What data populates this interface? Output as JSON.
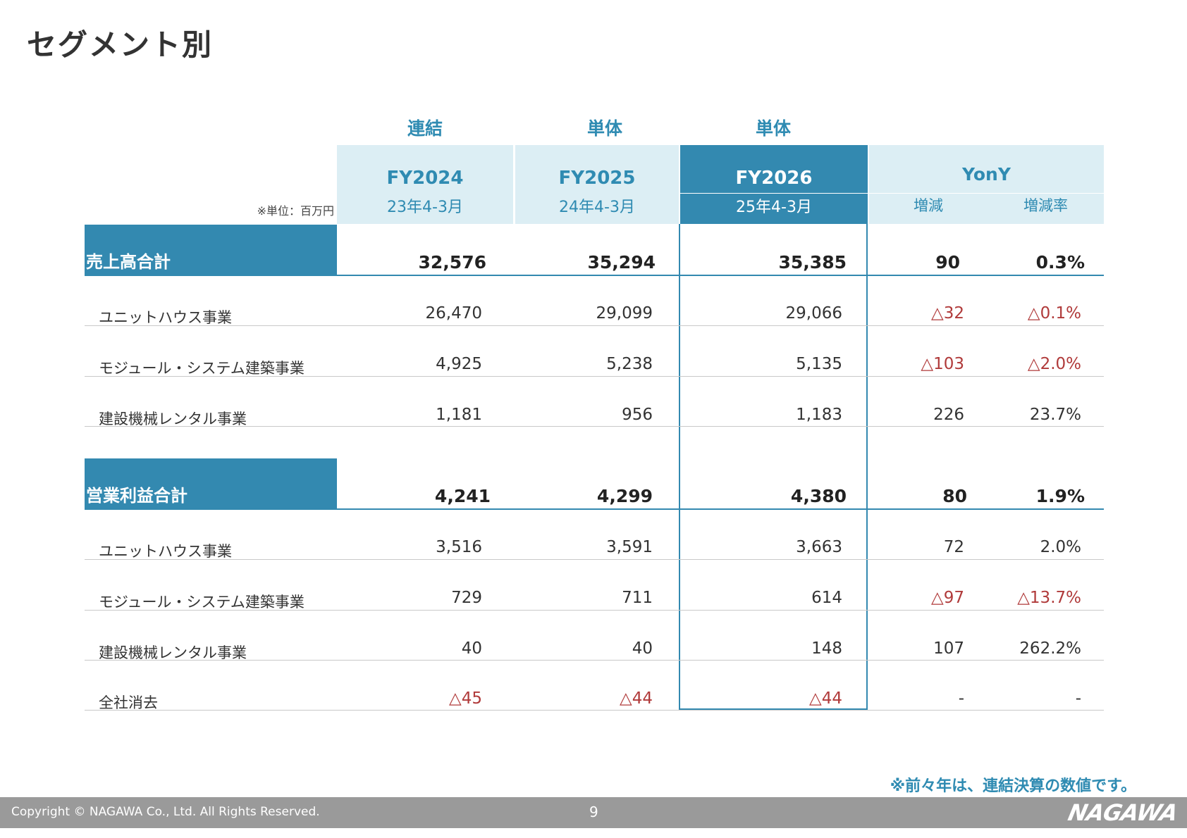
{
  "title": "セグメント別",
  "unit_label": "※単位：百万円",
  "column_groups": [
    "連結",
    "単体",
    "単体"
  ],
  "columns": [
    {
      "fy": "FY2024",
      "period": "23年4-3月"
    },
    {
      "fy": "FY2025",
      "period": "24年4-3月"
    },
    {
      "fy": "FY2026",
      "period": "25年4-3月"
    }
  ],
  "yony": {
    "label": "YonY",
    "change": "増減",
    "rate": "増減率"
  },
  "sections": [
    {
      "label": "売上高合計",
      "totals": [
        "32,576",
        "35,294",
        "35,385",
        "90",
        "0.3%"
      ],
      "rows": [
        {
          "name": "ユニットハウス事業",
          "values": [
            "26,470",
            "29,099",
            "29,066",
            "△32",
            "△0.1%"
          ]
        },
        {
          "name": "モジュール・システム建築事業",
          "values": [
            "4,925",
            "5,238",
            "5,135",
            "△103",
            "△2.0%"
          ]
        },
        {
          "name": "建設機械レンタル事業",
          "values": [
            "1,181",
            "956",
            "1,183",
            "226",
            "23.7%"
          ]
        }
      ]
    },
    {
      "label": "営業利益合計",
      "totals": [
        "4,241",
        "4,299",
        "4,380",
        "80",
        "1.9%"
      ],
      "rows": [
        {
          "name": "ユニットハウス事業",
          "values": [
            "3,516",
            "3,591",
            "3,663",
            "72",
            "2.0%"
          ]
        },
        {
          "name": "モジュール・システム建築事業",
          "values": [
            "729",
            "711",
            "614",
            "△97",
            "△13.7%"
          ]
        },
        {
          "name": "建設機械レンタル事業",
          "values": [
            "40",
            "40",
            "148",
            "107",
            "262.2%"
          ]
        },
        {
          "name": "全社消去",
          "values": [
            "△45",
            "△44",
            "△44",
            "-",
            "-"
          ]
        }
      ]
    }
  ],
  "note": "※前々年は、連結決算の数値です。",
  "footer": {
    "copyright": "Copyright © NAGAWA Co., Ltd. All Rights Reserved.",
    "page": "9",
    "logo": "NAGAWA"
  }
}
